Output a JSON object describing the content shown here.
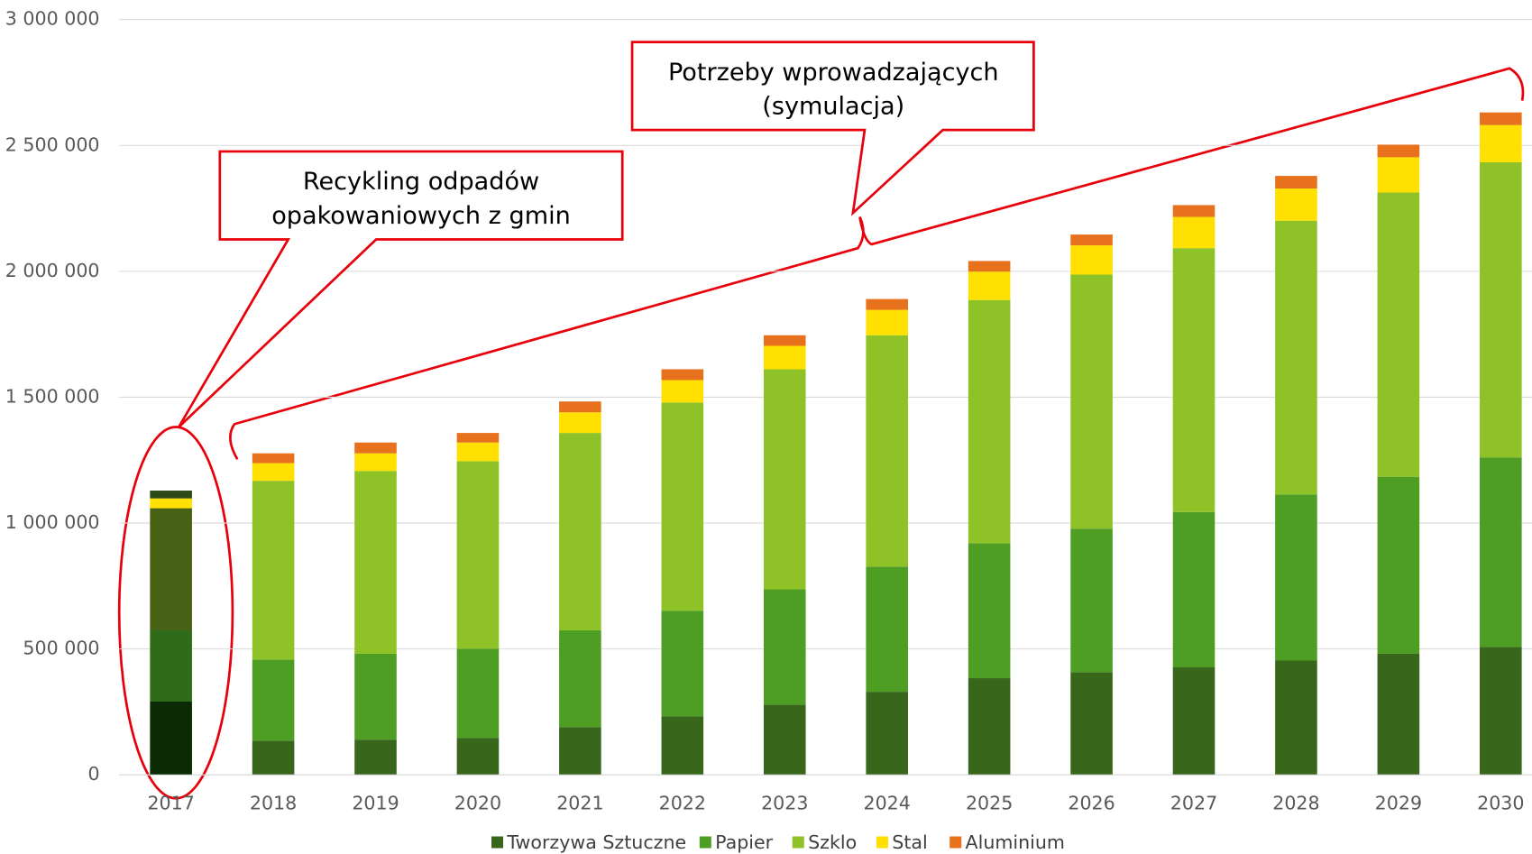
{
  "chart_data": {
    "type": "stacked_bar",
    "categories": [
      "2017",
      "2018",
      "2019",
      "2020",
      "2021",
      "2022",
      "2023",
      "2024",
      "2025",
      "2026",
      "2027",
      "2028",
      "2029",
      "2030"
    ],
    "series": [
      {
        "name": "Tworzywa Sztuczne",
        "color": "#38671c",
        "first_color": "#0b2b04",
        "values": [
          291000,
          136000,
          140000,
          147000,
          190000,
          233000,
          279000,
          330000,
          384000,
          408000,
          427000,
          454000,
          481000,
          508000
        ]
      },
      {
        "name": "Papier",
        "color": "#4f9e24",
        "first_color": "#2f6b18",
        "values": [
          283000,
          322000,
          341000,
          354000,
          384000,
          419000,
          458000,
          497000,
          536000,
          570000,
          617000,
          660000,
          703000,
          753000
        ]
      },
      {
        "name": "Szklo",
        "color": "#8fc226",
        "first_color": "#476214",
        "values": [
          485000,
          710000,
          726000,
          745000,
          784000,
          827000,
          874000,
          919000,
          966000,
          1009000,
          1048000,
          1087000,
          1129000,
          1172000
        ]
      },
      {
        "name": "Stal",
        "color": "#ffe000",
        "first_color": "#ffe000",
        "values": [
          39000,
          70000,
          70000,
          74000,
          82000,
          89000,
          93000,
          101000,
          113000,
          116000,
          124000,
          128000,
          140000,
          148000
        ]
      },
      {
        "name": "Aluminium",
        "color": "#e8711e",
        "first_color": "#2b4a17",
        "values": [
          31000,
          39000,
          43000,
          38000,
          43000,
          43000,
          42000,
          43000,
          42000,
          43000,
          47000,
          50000,
          50000,
          50000
        ]
      }
    ],
    "ylim": [
      0,
      3000000
    ],
    "yticks": [
      0,
      {
        "value": 500000,
        "label": "500 000"
      },
      {
        "value": 1000000,
        "label": "1 000 000"
      },
      {
        "value": 1500000,
        "label": "1 500 000"
      },
      {
        "value": 2000000,
        "label": "2 000 000"
      },
      {
        "value": 2500000,
        "label": "2 500 000"
      },
      {
        "value": 3000000,
        "label": "3 000 000"
      }
    ],
    "grid": true,
    "annotations": [
      {
        "text": [
          "Recykling odpadów",
          "opakowaniowych z gmin"
        ]
      },
      {
        "text": [
          "Potrzeby wprowadzających",
          "(symulacja)"
        ]
      }
    ]
  }
}
